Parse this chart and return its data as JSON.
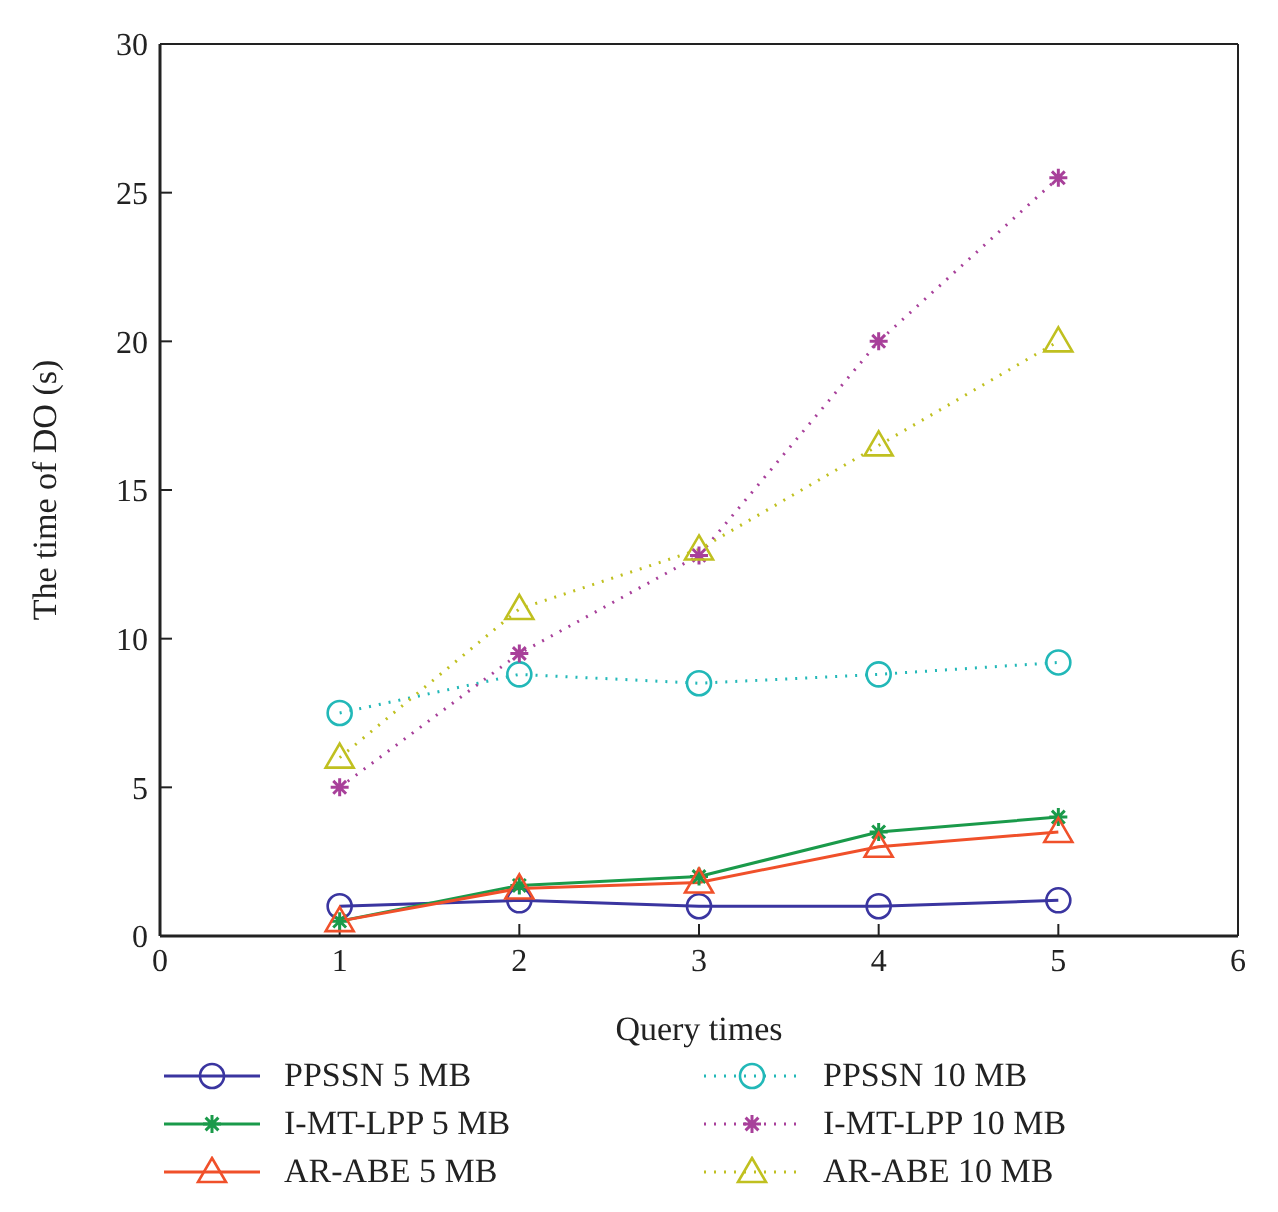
{
  "chart_data": {
    "type": "line",
    "xlabel": "Query times",
    "ylabel": "The time of DO (s)",
    "x": [
      1,
      2,
      3,
      4,
      5
    ],
    "xlim": [
      0,
      6
    ],
    "xticks": [
      0,
      1,
      2,
      3,
      4,
      5,
      6
    ],
    "ylim": [
      0,
      30
    ],
    "yticks": [
      0,
      5,
      10,
      15,
      20,
      25,
      30
    ],
    "grid": false,
    "legend": "bottom",
    "series": [
      {
        "name": "PPSSN 5 MB",
        "color": "#3a35a0",
        "marker": "circle",
        "line_style": "solid",
        "values": [
          1.0,
          1.2,
          1.0,
          1.0,
          1.2
        ]
      },
      {
        "name": "I-MT-LPP 5 MB",
        "color": "#1a9a4a",
        "marker": "cross",
        "line_style": "solid",
        "values": [
          0.5,
          1.7,
          2.0,
          3.5,
          4.0
        ]
      },
      {
        "name": "AR-ABE 5 MB",
        "color": "#f0502a",
        "marker": "triangle",
        "line_style": "solid",
        "values": [
          0.5,
          1.6,
          1.8,
          3.0,
          3.5
        ]
      },
      {
        "name": "PPSSN 10 MB",
        "color": "#22b8b8",
        "marker": "circle",
        "line_style": "dotted",
        "values": [
          7.5,
          8.8,
          8.5,
          8.8,
          9.2
        ]
      },
      {
        "name": "I-MT-LPP 10 MB",
        "color": "#a8409a",
        "marker": "cross",
        "line_style": "dotted",
        "values": [
          5.0,
          9.5,
          12.8,
          20.0,
          25.5
        ]
      },
      {
        "name": "AR-ABE 10 MB",
        "color": "#c0c020",
        "marker": "triangle",
        "line_style": "dotted",
        "values": [
          6.0,
          11.0,
          13.0,
          16.5,
          20.0
        ]
      }
    ]
  }
}
